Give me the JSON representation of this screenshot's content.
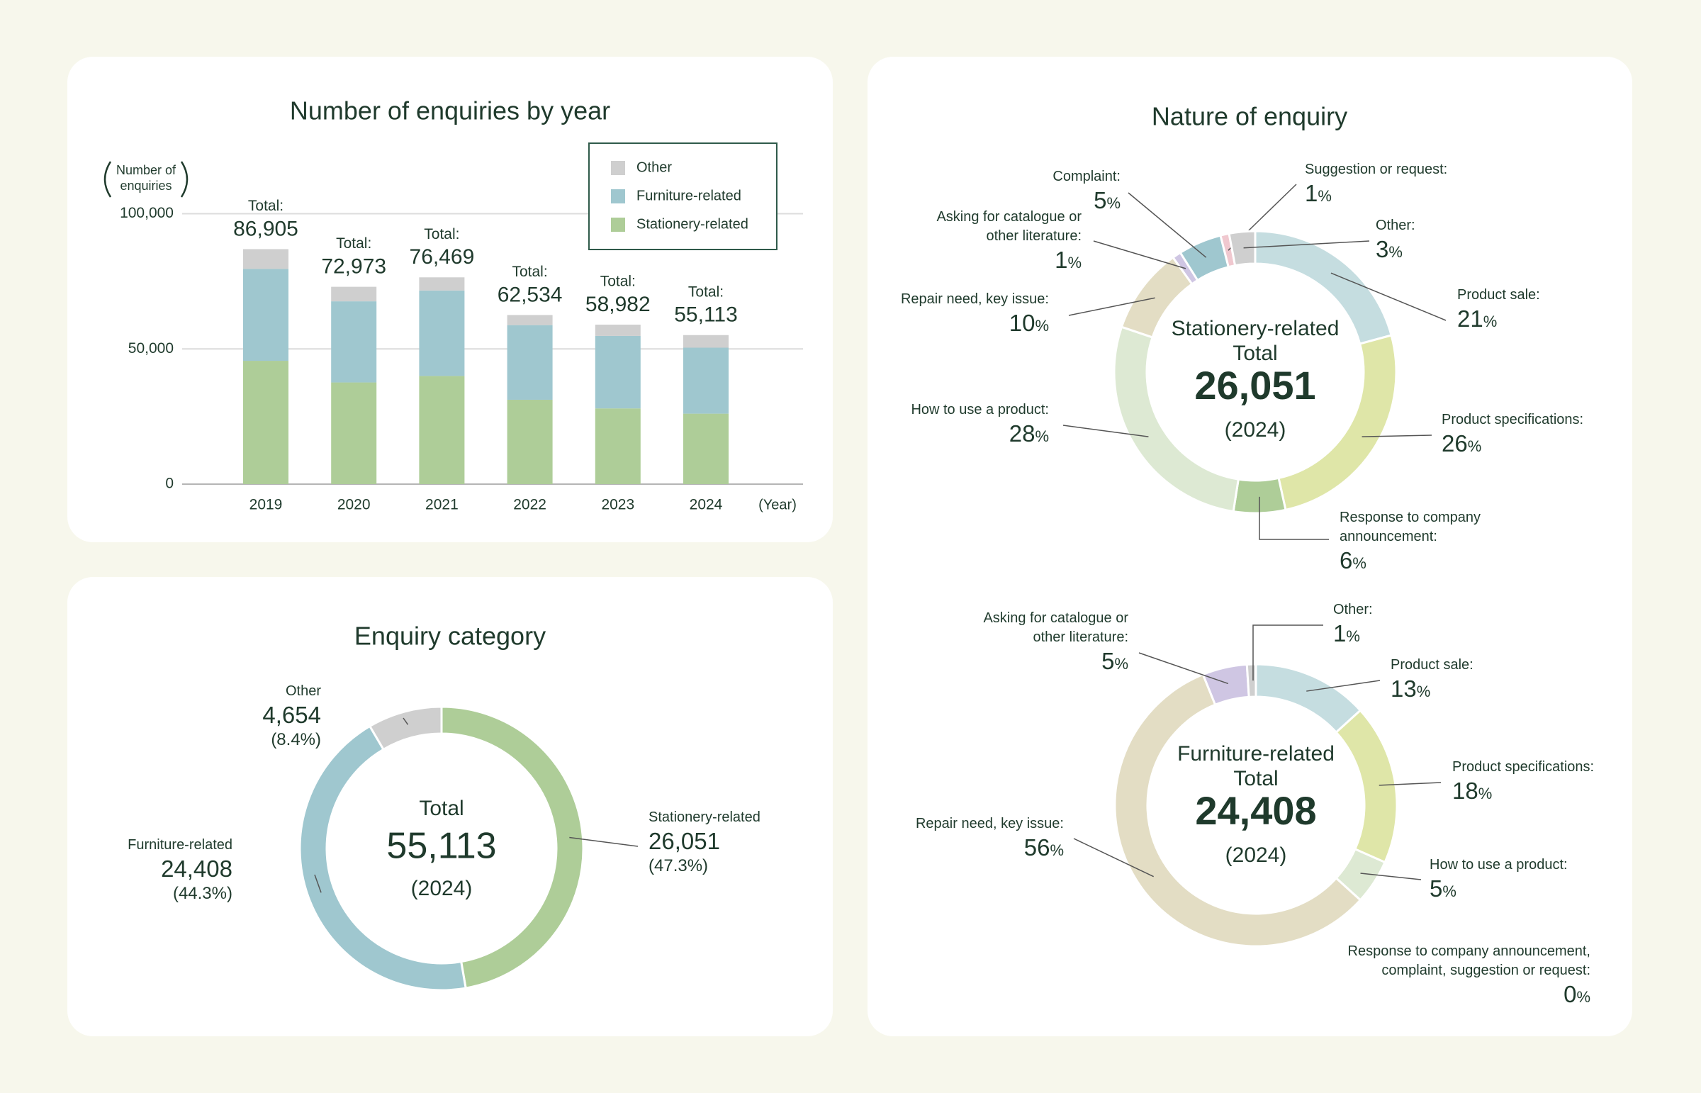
{
  "section_title": "Nature of enquiry",
  "chart_data": [
    {
      "type": "bar",
      "stacked": true,
      "title": "Number of enquiries by year",
      "y_label": "Number of enquiries",
      "x_label": "(Year)",
      "categories": [
        "2019",
        "2020",
        "2021",
        "2022",
        "2023",
        "2024"
      ],
      "series": [
        {
          "name": "Stationery-related",
          "color": "#aecd98",
          "values": [
            45600,
            37600,
            40000,
            31200,
            28000,
            26051
          ]
        },
        {
          "name": "Furniture-related",
          "color": "#9fc7cf",
          "values": [
            34000,
            30000,
            31600,
            27600,
            26800,
            24408
          ]
        },
        {
          "name": "Other",
          "color": "#cfcfcf",
          "values": [
            7305,
            5373,
            4869,
            3734,
            4182,
            4654
          ]
        }
      ],
      "total_label": "Total:",
      "totals": [
        86905,
        72973,
        76469,
        62534,
        58982,
        55113
      ],
      "total_value_labels": [
        "86,905",
        "72,973",
        "76,469",
        "62,534",
        "58,982",
        "55,113"
      ],
      "ylim": [
        0,
        100000
      ],
      "yticks": [
        0,
        {
          "value": 50000,
          "label": "50,000"
        },
        {
          "value": 100000,
          "label": "100,000"
        }
      ],
      "grid": true,
      "legend": "top-right"
    },
    {
      "type": "donut",
      "title": "Enquiry category",
      "center_text": [
        "Total",
        "55,113",
        "(2024)"
      ],
      "categories": [
        "Stationery-related",
        "Furniture-related",
        "Other"
      ],
      "values": [
        26051,
        24408,
        4654
      ],
      "value_labels": [
        "26,051",
        "24,408",
        "4,654"
      ],
      "percent_labels": [
        "(47.3%)",
        "(44.3%)",
        "(8.4%)"
      ],
      "colors": [
        "#aecd98",
        "#9fc7cf",
        "#cfcfcf"
      ]
    },
    {
      "type": "donut",
      "center_text": [
        "Stationery-related",
        "Total",
        "26,051",
        "(2024)"
      ],
      "categories": [
        "Product sale:",
        "Product specifications:",
        "Response to company announcement:",
        "How to use a product:",
        "Repair need, key issue:",
        "Asking for catalogue or other literature:",
        "Complaint:",
        "Suggestion or request:",
        "Other:"
      ],
      "values": [
        21,
        26,
        6,
        28,
        10,
        1,
        5,
        1,
        3
      ],
      "value_unit": "%",
      "colors": [
        "#c5dde0",
        "#dfe6a8",
        "#aecd98",
        "#dde9d3",
        "#e3ddc4",
        "#cfc6e3",
        "#9fc7cf",
        "#f0c8cf",
        "#cfcfcf"
      ]
    },
    {
      "type": "donut",
      "center_text": [
        "Furniture-related",
        "Total",
        "24,408",
        "(2024)"
      ],
      "categories": [
        "Product sale:",
        "Product specifications:",
        "How to use a product:",
        "Response to company announcement, complaint, suggestion or request:",
        "Repair need, key issue:",
        "Asking for catalogue or other literature:",
        "Other:"
      ],
      "values": [
        13,
        18,
        5,
        0,
        56,
        5,
        1
      ],
      "value_unit": "%",
      "colors": [
        "#c5dde0",
        "#dfe6a8",
        "#dde9d3",
        "#f0c8cf",
        "#e3ddc4",
        "#cfc6e3",
        "#cfcfcf"
      ]
    }
  ]
}
